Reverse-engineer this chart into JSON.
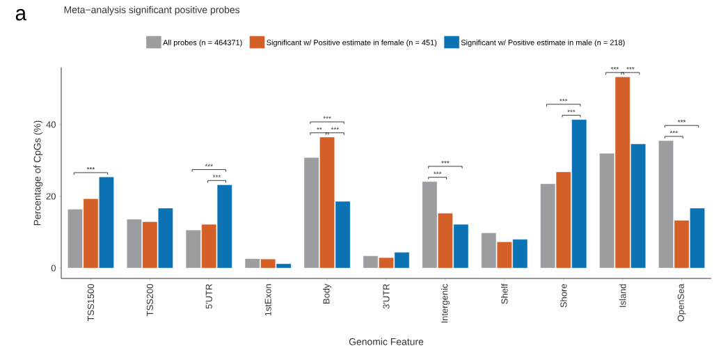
{
  "chart_data": {
    "type": "bar",
    "title": "Meta−analysis significant positive probes",
    "xlabel": "Genomic Feature",
    "ylabel": "Percentage of CpGs (%)",
    "categories": [
      "TSS1500",
      "TSS200",
      "5'UTR",
      "1stExon",
      "Body",
      "3'UTR",
      "Intergenic",
      "Shelf",
      "Shore",
      "Island",
      "OpenSea"
    ],
    "series": [
      {
        "name": "All probes (n = 464371)",
        "color": "#9c9da1",
        "values": [
          16.4,
          13.6,
          10.6,
          2.6,
          30.8,
          3.4,
          24.1,
          9.8,
          23.5,
          32.0,
          35.5
        ]
      },
      {
        "name": "Significant w/ Positive estimate in female (n = 451)",
        "color": "#d45f27",
        "values": [
          19.3,
          12.9,
          12.2,
          2.5,
          36.5,
          2.9,
          15.3,
          7.3,
          26.8,
          53.3,
          13.3
        ]
      },
      {
        "name": "Significant w/ Positive estimate in male (n = 218)",
        "color": "#0b72b4",
        "values": [
          25.4,
          16.7,
          23.2,
          1.2,
          18.6,
          4.4,
          12.2,
          8.0,
          41.4,
          34.6,
          16.7
        ]
      }
    ],
    "ylim": [
      -2.9,
      55.9
    ],
    "yticks": [
      0,
      20,
      40
    ],
    "grid": false,
    "legend": "top",
    "annotations": [
      "a",
      "***",
      "***",
      "***",
      "***",
      "**",
      "***",
      "***",
      "***",
      "***",
      "***",
      "***",
      "***",
      "***",
      "***"
    ]
  }
}
